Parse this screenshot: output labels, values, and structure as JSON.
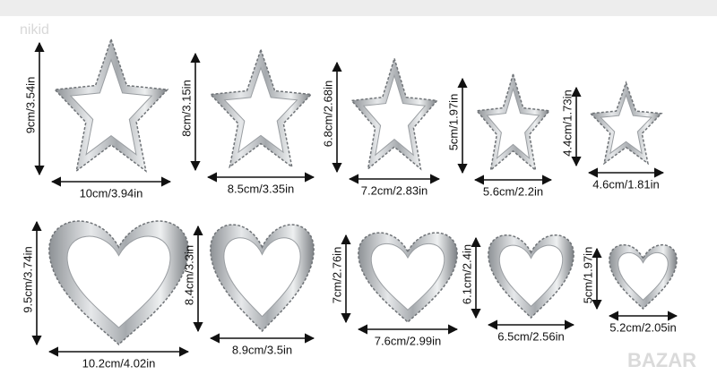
{
  "watermark_top": "nikid",
  "watermark_bottom": "BAZAR",
  "stars": [
    {
      "height": "9cm/3.54in",
      "width": "10cm/3.94in"
    },
    {
      "height": "8cm/3.15in",
      "width": "8.5cm/3.35in"
    },
    {
      "height": "6.8cm/2.68in",
      "width": "7.2cm/2.83in"
    },
    {
      "height": "5cm/1.97in",
      "width": "5.6cm/2.2in"
    },
    {
      "height": "4.4cm/1.73in",
      "width": "4.6cm/1.81in"
    }
  ],
  "hearts": [
    {
      "height": "9.5cm/3.74in",
      "width": "10.2cm/4.02in"
    },
    {
      "height": "8.4cm/3.3in",
      "width": "8.9cm/3.5in"
    },
    {
      "height": "7cm/2.76in",
      "width": "7.6cm/2.99in"
    },
    {
      "height": "6.1cm/2.4in",
      "width": "6.5cm/2.56in"
    },
    {
      "height": "5cm/1.97in",
      "width": "5.2cm/2.05in"
    }
  ]
}
